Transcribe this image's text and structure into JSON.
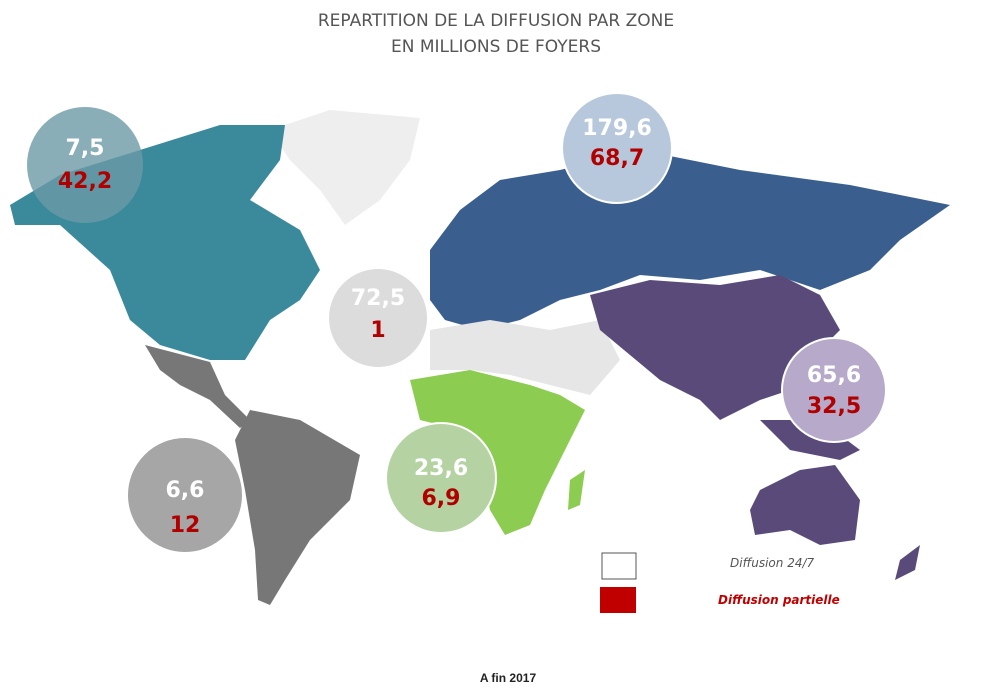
{
  "header": {
    "title": [
      "REPARTITION DE LA DIFFUSION PAR ZONE",
      "EN MILLIONS DE FOYERS"
    ]
  },
  "zones": [
    {
      "full": "7,5",
      "partial": "42,2"
    },
    {
      "full": "179,6",
      "partial": "68,7"
    },
    {
      "full": "72,5",
      "partial": "1"
    },
    {
      "full": "65,6",
      "partial": "32,5"
    },
    {
      "full": "6,6",
      "partial": "12"
    },
    {
      "full": "23,6",
      "partial": "6,9"
    }
  ],
  "legend": [
    {
      "label": "Diffusion 24/7"
    },
    {
      "label": "Diffusion partielle"
    }
  ],
  "footnote": "A fin 2017"
}
